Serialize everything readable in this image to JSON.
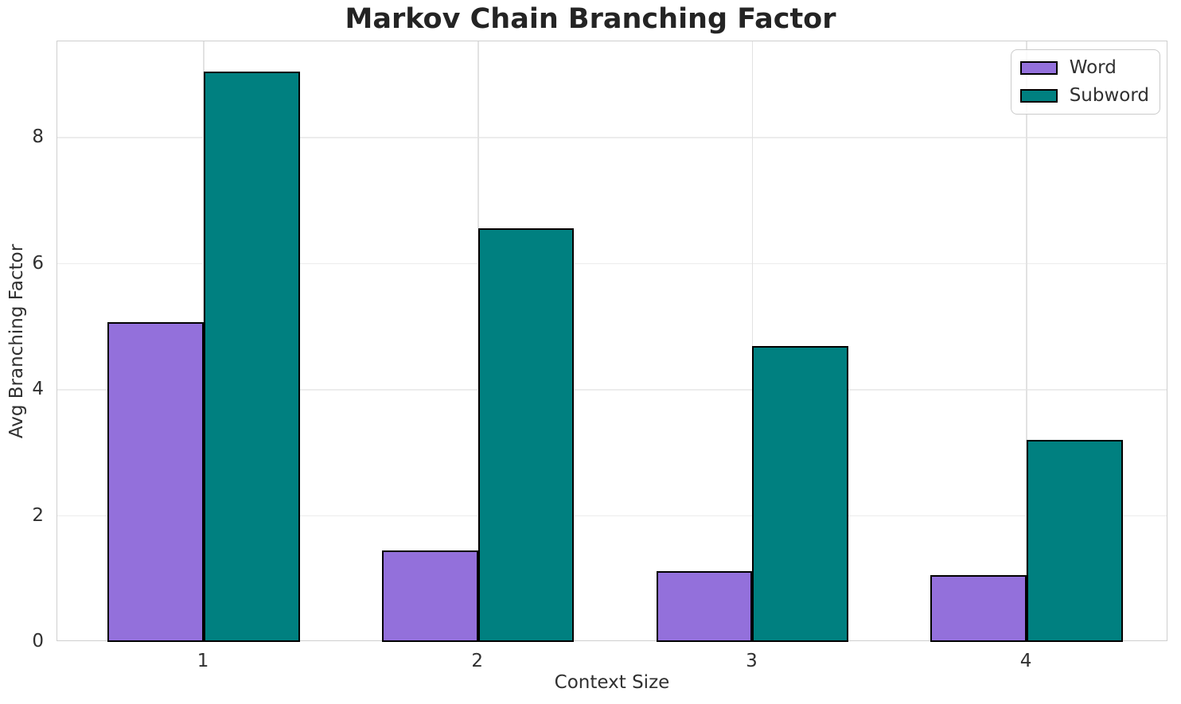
{
  "chart_data": {
    "type": "bar",
    "title": "Markov Chain Branching Factor",
    "xlabel": "Context Size",
    "ylabel": "Avg Branching Factor",
    "categories": [
      "1",
      "2",
      "3",
      "4"
    ],
    "x": [
      1,
      2,
      3,
      4
    ],
    "series": [
      {
        "name": "Word",
        "color": "#9370DB",
        "values": [
          5.07,
          1.45,
          1.12,
          1.06
        ]
      },
      {
        "name": "Subword",
        "color": "#008080",
        "values": [
          9.05,
          6.56,
          4.69,
          3.2
        ]
      }
    ],
    "bar_width": 0.35,
    "bar_edge_color": "#000000",
    "xlim": [
      0.466,
      4.516
    ],
    "ylim": [
      0,
      9.53
    ],
    "yticks": [
      0,
      2,
      4,
      6,
      8
    ],
    "grid": true,
    "legend_position": "upper right"
  },
  "style": {
    "background": "#ffffff",
    "title_color": "#242424",
    "text_color": "#303030",
    "spine_color": "#cfcfcf",
    "hgrid_color": "#ececec",
    "vgrid_color": "#e2e2e2",
    "legend_border_color": "#cbcbcb"
  }
}
